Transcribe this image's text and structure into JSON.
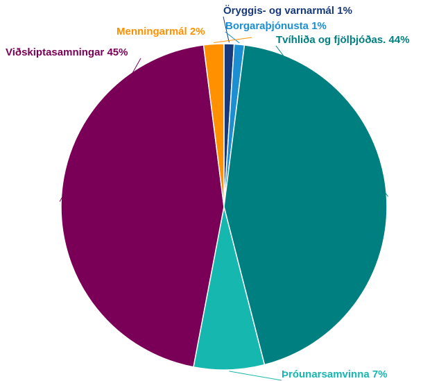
{
  "chart_data": {
    "type": "pie",
    "categories": [
      "Öryggis- og varnarmál",
      "Borgaraþjónusta",
      "Tvíhliða og fjölþjóðas.",
      "Þróunarsamvinna",
      "Viðskiptasamningar",
      "Menningarmál"
    ],
    "values": [
      1,
      1,
      44,
      7,
      45,
      2
    ],
    "value_labels": [
      "1%",
      "1%",
      "44%",
      "7%",
      "45%",
      "2%"
    ],
    "colors": [
      "#173a7c",
      "#1b8fd2",
      "#007f80",
      "#16b7ae",
      "#7a0057",
      "#ff9100"
    ]
  }
}
